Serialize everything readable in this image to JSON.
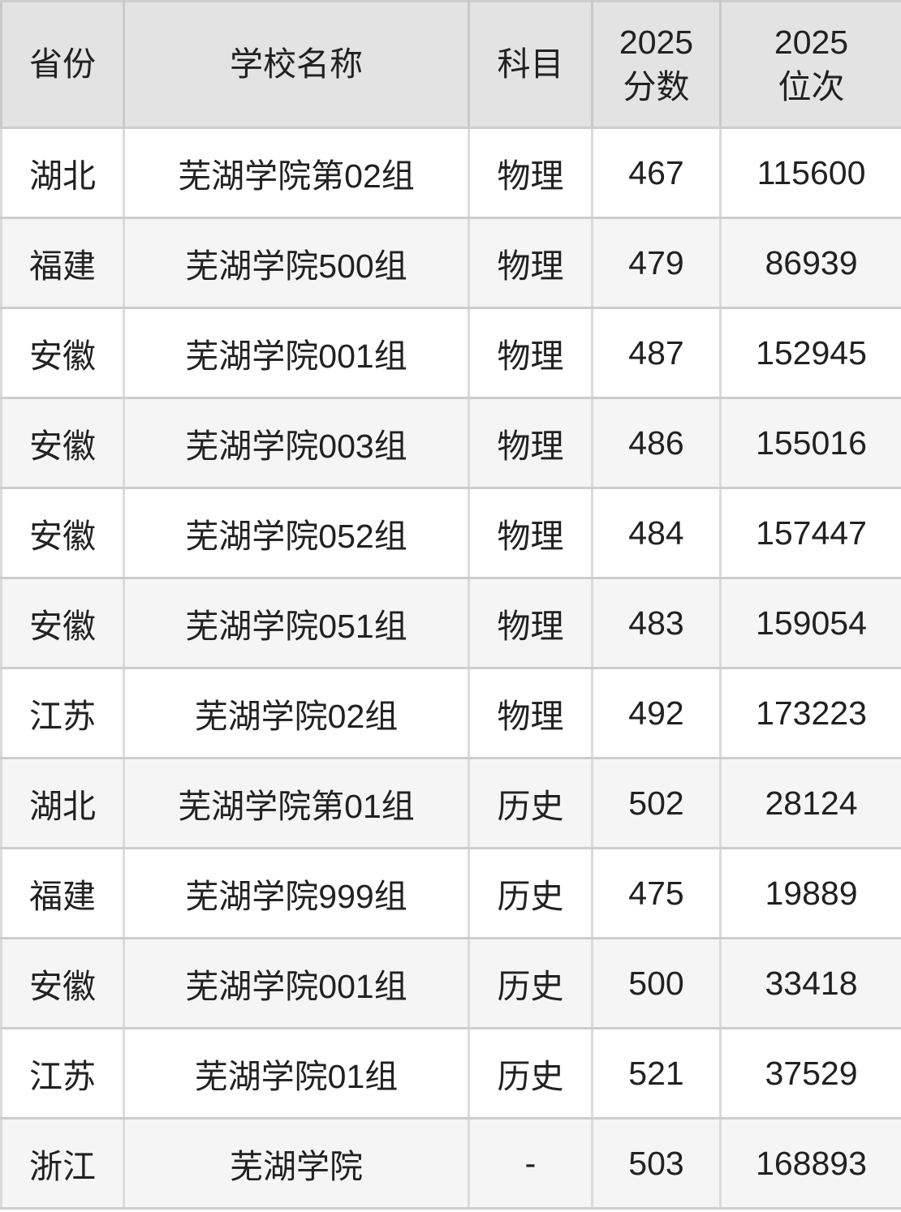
{
  "chart_data": {
    "type": "table",
    "columns": [
      "省份",
      "学校名称",
      "科目",
      "2025\n分数",
      "2025\n位次"
    ],
    "column_keys": [
      "province",
      "school",
      "subject",
      "score",
      "rank"
    ],
    "rows": [
      {
        "province": "湖北",
        "school": "芜湖学院第02组",
        "subject": "物理",
        "score": "467",
        "rank": "115600"
      },
      {
        "province": "福建",
        "school": "芜湖学院500组",
        "subject": "物理",
        "score": "479",
        "rank": "86939"
      },
      {
        "province": "安徽",
        "school": "芜湖学院001组",
        "subject": "物理",
        "score": "487",
        "rank": "152945"
      },
      {
        "province": "安徽",
        "school": "芜湖学院003组",
        "subject": "物理",
        "score": "486",
        "rank": "155016"
      },
      {
        "province": "安徽",
        "school": "芜湖学院052组",
        "subject": "物理",
        "score": "484",
        "rank": "157447"
      },
      {
        "province": "安徽",
        "school": "芜湖学院051组",
        "subject": "物理",
        "score": "483",
        "rank": "159054"
      },
      {
        "province": "江苏",
        "school": "芜湖学院02组",
        "subject": "物理",
        "score": "492",
        "rank": "173223"
      },
      {
        "province": "湖北",
        "school": "芜湖学院第01组",
        "subject": "历史",
        "score": "502",
        "rank": "28124"
      },
      {
        "province": "福建",
        "school": "芜湖学院999组",
        "subject": "历史",
        "score": "475",
        "rank": "19889"
      },
      {
        "province": "安徽",
        "school": "芜湖学院001组",
        "subject": "历史",
        "score": "500",
        "rank": "33418"
      },
      {
        "province": "江苏",
        "school": "芜湖学院01组",
        "subject": "历史",
        "score": "521",
        "rank": "37529"
      },
      {
        "province": "浙江",
        "school": "芜湖学院",
        "subject": "-",
        "score": "503",
        "rank": "168893"
      }
    ],
    "style": {
      "header_bg": "#e3e3e3",
      "row_bg": "#ffffff",
      "row_alt_bg": "#f5f5f5",
      "border_horizontal": "#cdcdcd",
      "border_vertical": "#dbdbdb",
      "text_color": "#212121"
    }
  }
}
